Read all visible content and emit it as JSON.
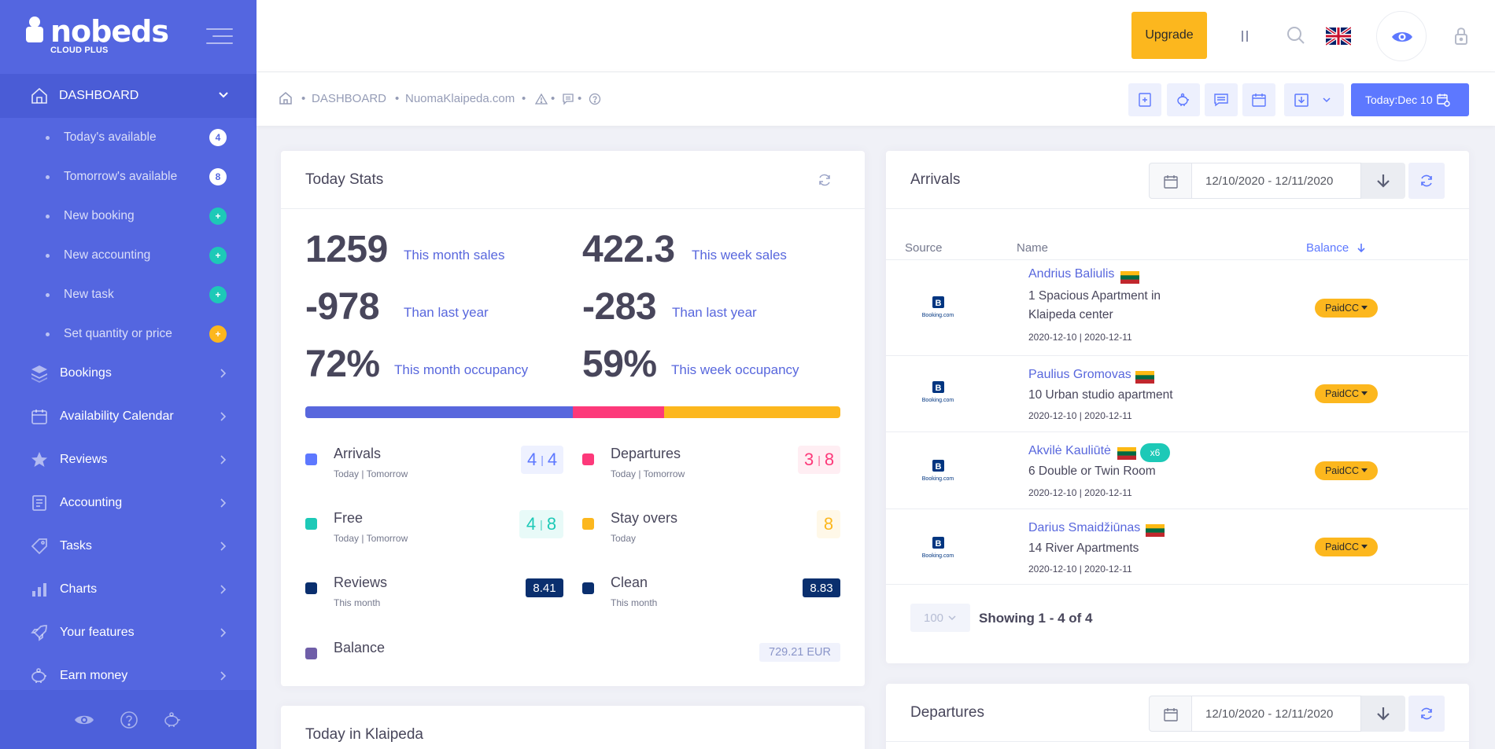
{
  "brand": {
    "name": "nobeds",
    "sub": "CLOUD PLUS"
  },
  "sidebar": {
    "dashboard_label": "DASHBOARD",
    "sub_items": [
      {
        "label": "Today's available",
        "badge": "4",
        "badge_type": "count"
      },
      {
        "label": "Tomorrow's available",
        "badge": "8",
        "badge_type": "count"
      },
      {
        "label": "New booking",
        "badge": "+",
        "badge_type": "add"
      },
      {
        "label": "New accounting",
        "badge": "+",
        "badge_type": "add"
      },
      {
        "label": "New task",
        "badge": "+",
        "badge_type": "add"
      },
      {
        "label": "Set quantity or price",
        "badge": "+",
        "badge_type": "warn"
      }
    ],
    "items": [
      {
        "label": "Bookings",
        "icon": "layers-icon"
      },
      {
        "label": "Availability Calendar",
        "icon": "calendar-icon"
      },
      {
        "label": "Reviews",
        "icon": "star-icon"
      },
      {
        "label": "Accounting",
        "icon": "receipt-icon"
      },
      {
        "label": "Tasks",
        "icon": "tag-icon"
      },
      {
        "label": "Charts",
        "icon": "bar-chart-icon"
      },
      {
        "label": "Your features",
        "icon": "rocket-icon"
      },
      {
        "label": "Earn money",
        "icon": "piggy-bank-icon"
      }
    ]
  },
  "topbar": {
    "upgrade_label": "Upgrade"
  },
  "subheader": {
    "crumb_dashboard": "DASHBOARD",
    "crumb_property": "NuomaKlaipeda.com",
    "today_label": "Today:",
    "today_date": "Dec 10"
  },
  "today_stats": {
    "title": "Today Stats",
    "big": [
      {
        "value": "1259",
        "label": "This month sales"
      },
      {
        "value": "422.3",
        "label": "This week sales"
      },
      {
        "value": "-978",
        "label": "Than last year"
      },
      {
        "value": "-283",
        "label": "Than last year"
      },
      {
        "value": "72%",
        "label": "This month occupancy"
      },
      {
        "value": "59%",
        "label": "This week occupancy"
      }
    ],
    "progress": [
      {
        "fraction": 0.5,
        "color": "#5867dd"
      },
      {
        "fraction": 0.17,
        "color": "#fd397a"
      },
      {
        "fraction": 0.33,
        "color": "#fcb71e"
      }
    ],
    "stats": [
      {
        "name": "Arrivals",
        "sub": "Today | Tomorrow",
        "a": "4",
        "b": "4"
      },
      {
        "name": "Departures",
        "sub": "Today | Tomorrow",
        "a": "3",
        "b": "8"
      },
      {
        "name": "Free",
        "sub": "Today | Tomorrow",
        "a": "4",
        "b": "8"
      },
      {
        "name": "Stay overs",
        "sub": "Today",
        "a": "8"
      },
      {
        "name": "Reviews",
        "sub": "This month",
        "a": "8.41"
      },
      {
        "name": "Clean",
        "sub": "This month",
        "a": "8.83"
      },
      {
        "name": "Balance",
        "a": "729.21 EUR"
      }
    ]
  },
  "today_in": {
    "title": "Today in Klaipeda"
  },
  "arrivals": {
    "title": "Arrivals",
    "date_range": "12/10/2020 - 12/11/2020",
    "columns": {
      "source": "Source",
      "name": "Name",
      "balance": "Balance"
    },
    "rows": [
      {
        "guest": "Andrius Baliulis",
        "room": "1 Spacious Apartment in Klaipeda center",
        "dates": "2020-12-10 | 2020-12-11",
        "status": "PaidCC",
        "source": "Booking.com"
      },
      {
        "guest": "Paulius Gromovas",
        "room": "10 Urban studio apartment",
        "dates": "2020-12-10 | 2020-12-11",
        "status": "PaidCC",
        "source": "Booking.com"
      },
      {
        "guest": "Akvilė Kauliūtė",
        "room": "6 Double or Twin Room",
        "dates": "2020-12-10 | 2020-12-11",
        "status": "PaidCC",
        "source": "Booking.com",
        "extra": "x6"
      },
      {
        "guest": "Darius Smaidžiūnas",
        "room": "14 River Apartments",
        "dates": "2020-12-10 | 2020-12-11",
        "status": "PaidCC",
        "source": "Booking.com"
      }
    ],
    "per_page": "100",
    "showing": "Showing 1 - 4 of 4"
  },
  "departures": {
    "title": "Departures",
    "date_range": "12/10/2020 - 12/11/2020"
  },
  "colors": {
    "sidebar": "#5466e0",
    "accent": "#5867dd",
    "warning": "#fcb71e",
    "danger": "#fd397a",
    "success": "#1dc9b7",
    "navy": "#0a2f6e"
  }
}
